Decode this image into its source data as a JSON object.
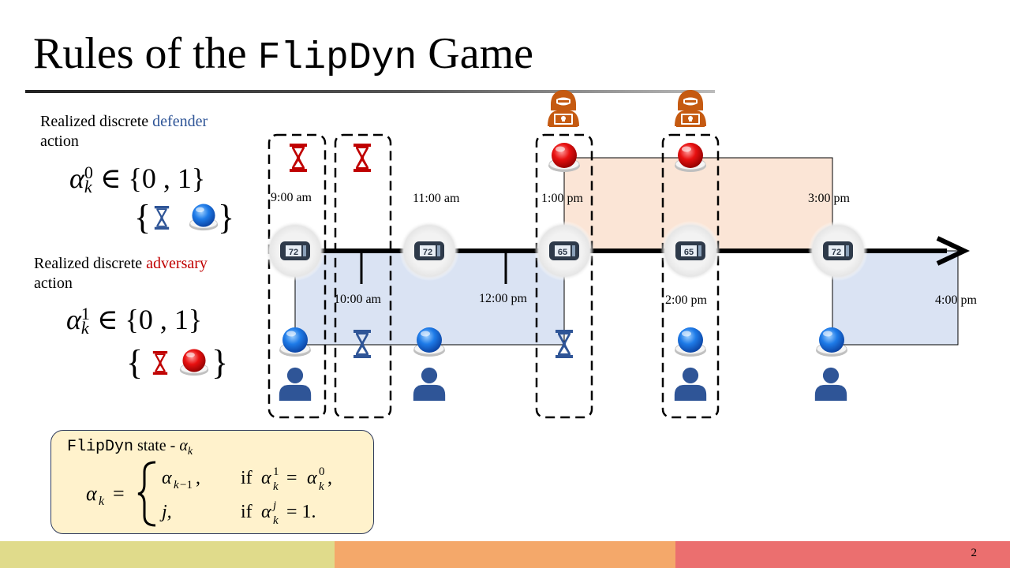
{
  "title": {
    "prefix": "Rules of the ",
    "code": "FlipDyn",
    "suffix": " Game"
  },
  "defender_label": {
    "line1_pre": "Realized discrete ",
    "word": "defender",
    "line2": "action"
  },
  "adversary_label": {
    "line1_pre": "Realized discrete ",
    "word": "adversary",
    "line2": "action"
  },
  "state_box": {
    "code": "FlipDyn",
    "text": " state - "
  },
  "timeline": {
    "times_top": [
      "9:00 am",
      "11:00 am",
      "1:00 pm",
      "3:00 pm"
    ],
    "times_bottom": [
      "10:00 am",
      "12:00 pm",
      "2:00 pm",
      "4:00 pm"
    ],
    "thermostat_readings": [
      "72",
      "72",
      "65",
      "65",
      "72"
    ]
  },
  "page_number": "2",
  "colors": {
    "defender": "#2f5597",
    "adversary": "#c00000",
    "defender_region": "#dae3f3",
    "adversary_region": "#fbe5d6",
    "hacker": "#c55a11",
    "footer": [
      "#e0db8b",
      "#f4a86a",
      "#eb6f6f"
    ]
  },
  "icons": [
    "hourglass-icon",
    "red-button-icon",
    "blue-button-icon",
    "user-icon",
    "hacker-icon",
    "thermostat-icon"
  ]
}
